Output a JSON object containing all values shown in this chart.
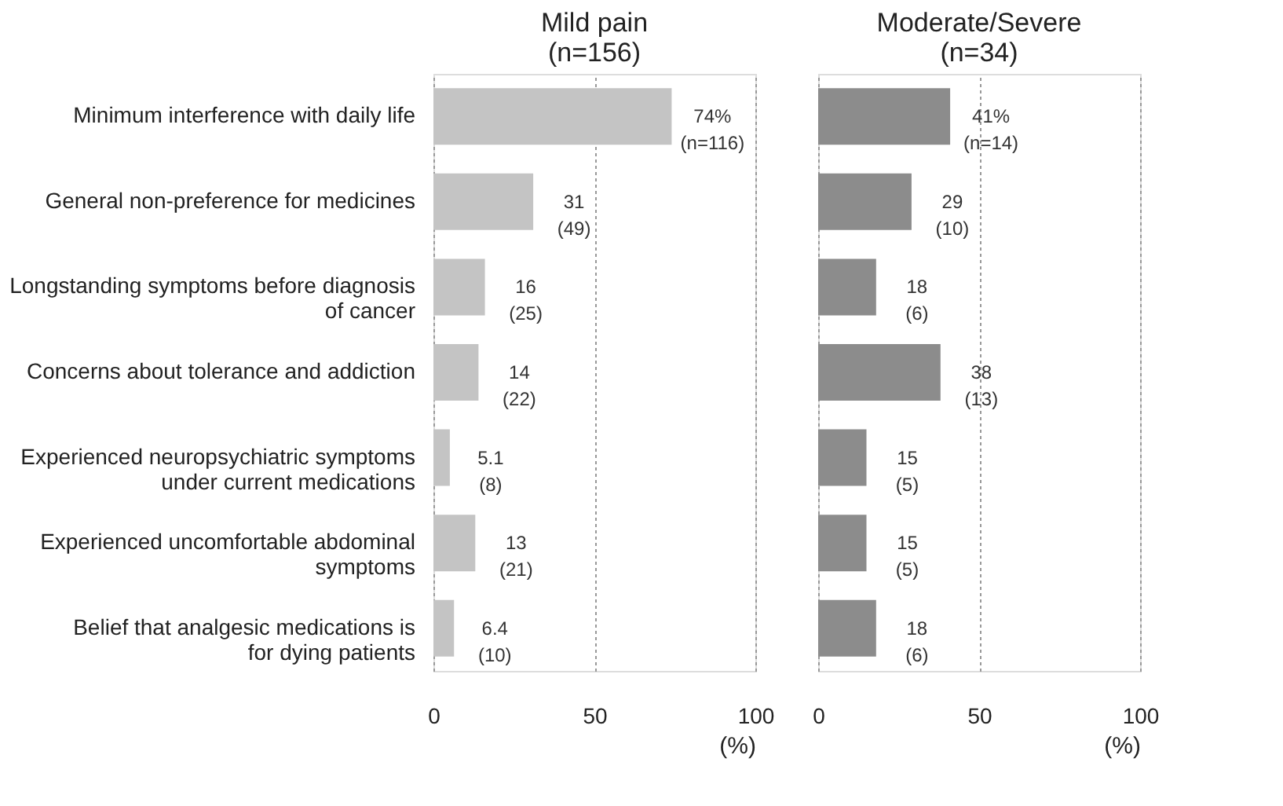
{
  "chart_data": [
    {
      "type": "bar",
      "orientation": "horizontal",
      "title": "Mild pain (n=156)",
      "xlabel": "(%)",
      "categories": [
        "Minimum interference with daily life",
        "General non-preference for medicines",
        "Longstanding symptoms before diagnosis of cancer",
        "Concerns about tolerance and addiction",
        "Experienced neuropsychiatric symptoms under current medications",
        "Experienced uncomfortable abdominal symptoms",
        "Belief that analgesic medications is for dying patients"
      ],
      "series": [
        {
          "color": "#c4c4c4",
          "values": [
            74,
            31,
            16,
            14,
            5.1,
            13,
            6.4
          ],
          "value_labels": [
            "74%\n(n=116)",
            "31\n(49)",
            "16\n(25)",
            "14\n(22)",
            "5.1\n(8)",
            "13\n(21)",
            "6.4\n(10)"
          ]
        }
      ],
      "xlim": [
        0,
        100
      ],
      "xticks": [
        0,
        50,
        100
      ],
      "grid": "x"
    },
    {
      "type": "bar",
      "orientation": "horizontal",
      "title": "Moderate/Severe (n=34)",
      "xlabel": "(%)",
      "categories": [
        "Minimum interference with daily life",
        "General non-preference for medicines",
        "Longstanding symptoms before diagnosis of cancer",
        "Concerns about tolerance and addiction",
        "Experienced neuropsychiatric symptoms under current medications",
        "Experienced uncomfortable abdominal symptoms",
        "Belief that analgesic medications is for dying patients"
      ],
      "series": [
        {
          "color": "#8c8c8c",
          "values": [
            41,
            29,
            18,
            38,
            15,
            15,
            18
          ],
          "value_labels": [
            "41%\n(n=14)",
            "29\n(10)",
            "18\n(6)",
            "38\n(13)",
            "15\n(5)",
            "15\n(5)",
            "18\n(6)"
          ]
        }
      ],
      "xlim": [
        0,
        100
      ],
      "xticks": [
        0,
        50,
        100
      ],
      "grid": "x",
      "tick_labels": "x"
    }
  ]
}
